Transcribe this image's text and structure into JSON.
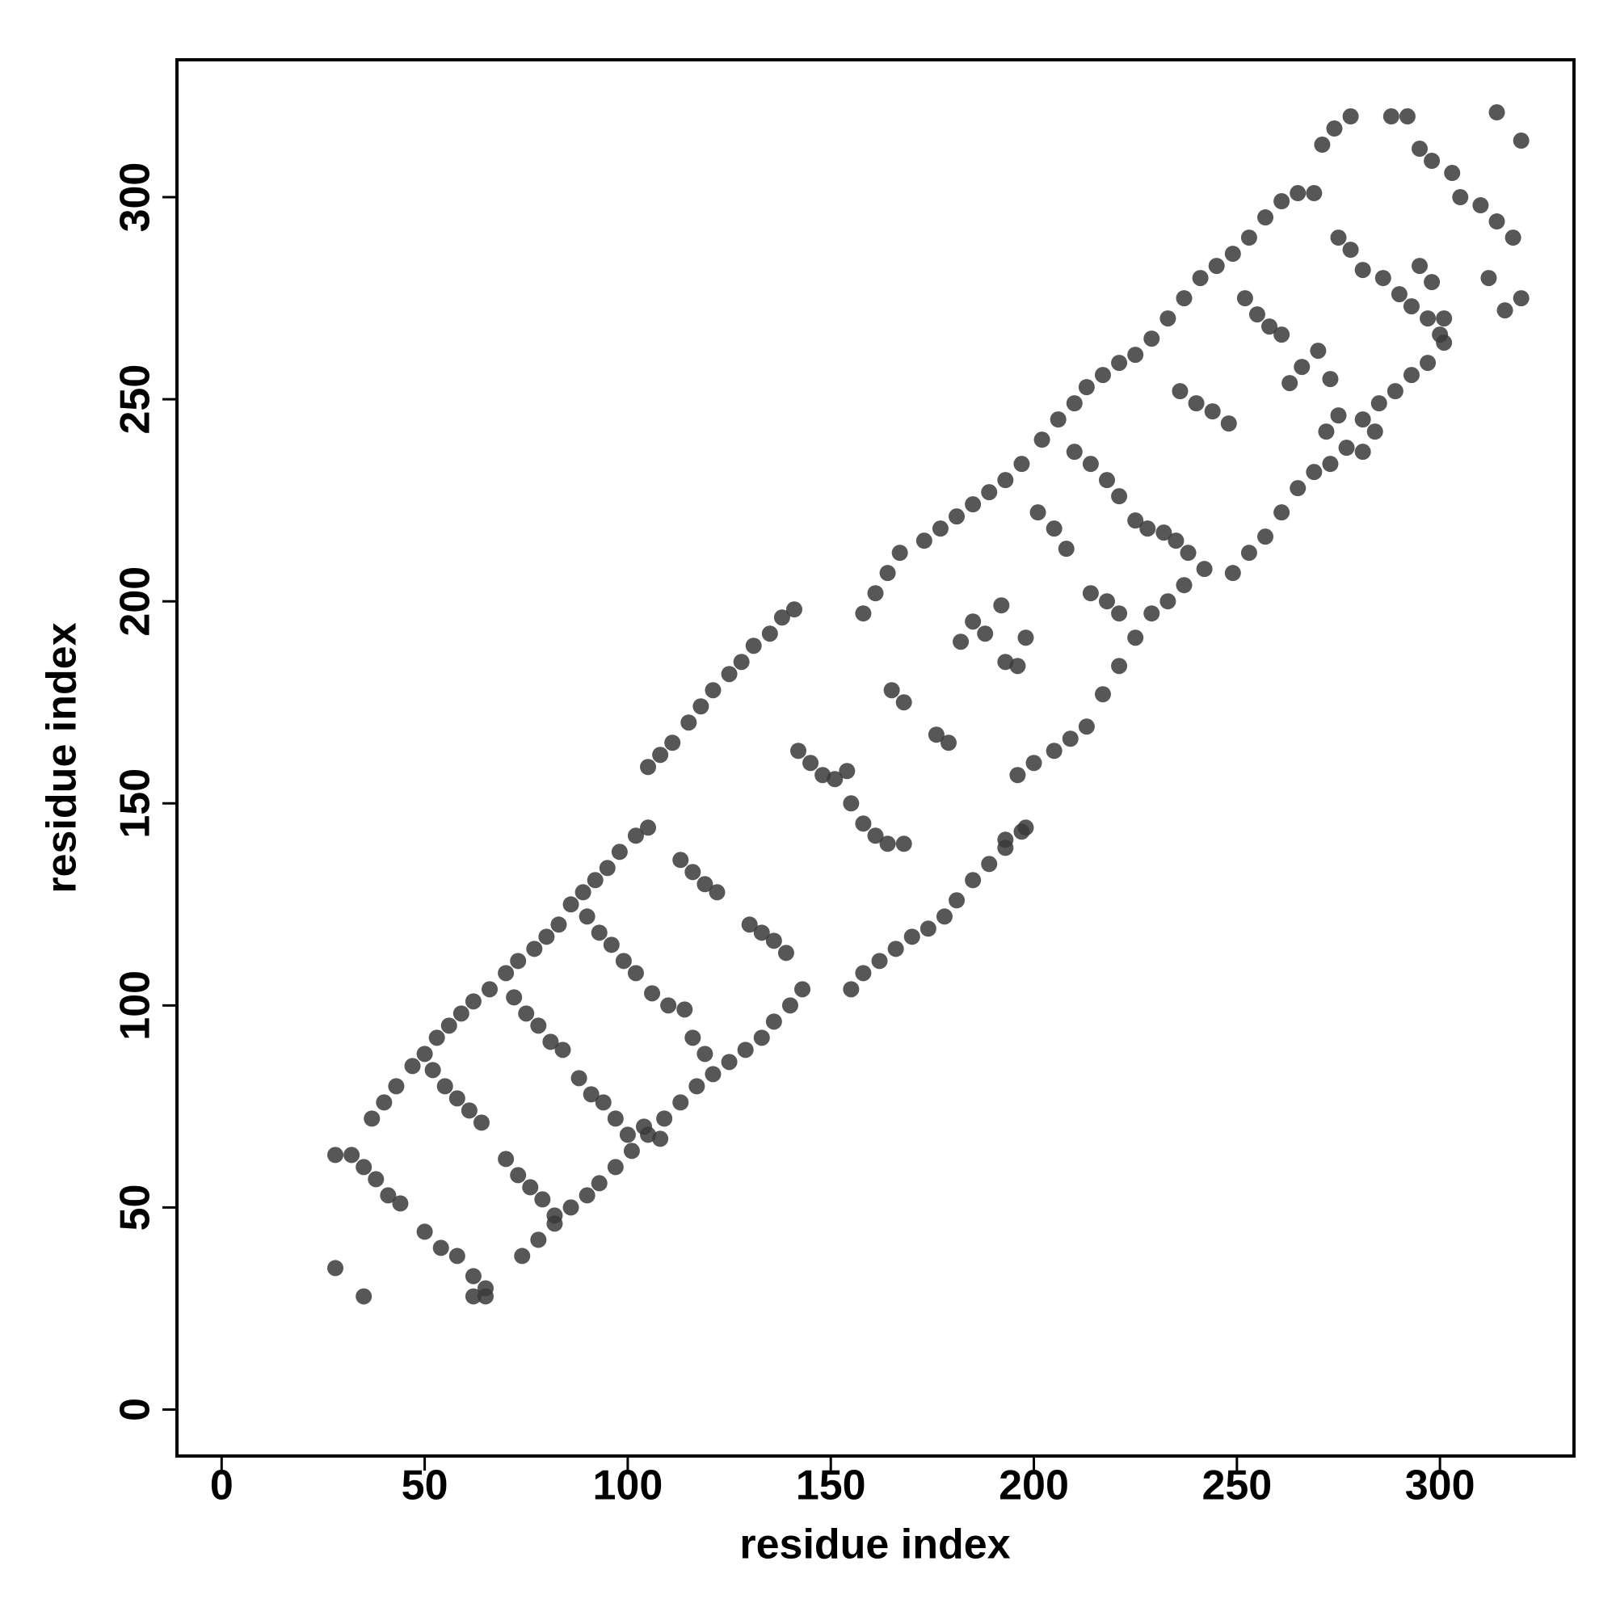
{
  "chart_data": {
    "type": "scatter",
    "xlabel": "residue index",
    "ylabel": "residue index",
    "xlim": [
      -11,
      333
    ],
    "ylim": [
      -11.5,
      334
    ],
    "xticks": [
      0,
      50,
      100,
      150,
      200,
      250,
      300
    ],
    "yticks": [
      0,
      50,
      100,
      150,
      200,
      250,
      300
    ],
    "color": "#3a3a3a",
    "x": [
      37,
      40,
      43,
      47,
      50,
      53,
      56,
      59,
      62,
      66,
      70,
      73,
      77,
      80,
      83,
      86,
      89,
      92,
      95,
      98,
      102,
      105,
      105,
      108,
      111,
      115,
      118,
      121,
      125,
      128,
      131,
      135,
      138,
      141,
      158,
      161,
      164,
      167,
      173,
      177,
      181,
      185,
      189,
      193,
      197,
      202,
      206,
      210,
      213,
      217,
      221,
      225,
      229,
      233,
      237,
      241,
      245,
      249,
      253,
      257,
      261,
      265,
      269,
      28,
      32,
      35,
      38,
      41,
      44,
      50,
      54,
      58,
      62,
      65,
      74,
      78,
      82,
      86,
      90,
      93,
      97,
      101,
      105,
      109,
      113,
      117,
      121,
      125,
      129,
      133,
      136,
      140,
      143,
      155,
      158,
      162,
      166,
      170,
      174,
      178,
      181,
      185,
      189,
      193,
      197,
      205,
      209,
      213,
      217,
      221,
      225,
      229,
      233,
      237,
      249,
      253,
      257,
      261,
      265,
      269,
      273,
      277,
      281,
      285,
      289,
      293,
      297,
      301,
      301,
      52,
      55,
      58,
      61,
      64,
      72,
      75,
      78,
      81,
      84,
      90,
      93,
      96,
      99,
      102,
      106,
      110,
      114,
      113,
      116,
      119,
      122,
      130,
      133,
      136,
      139,
      70,
      73,
      76,
      79,
      82,
      88,
      91,
      94,
      97,
      100,
      104,
      108,
      116,
      119,
      142,
      145,
      148,
      151,
      154,
      155,
      158,
      161,
      164,
      168,
      165,
      168,
      176,
      179,
      182,
      185,
      188,
      193,
      196,
      192,
      198,
      210,
      214,
      218,
      221,
      214,
      218,
      221,
      225,
      228,
      232,
      235,
      238,
      242,
      236,
      240,
      244,
      248,
      200,
      196,
      193,
      198,
      208,
      205,
      201,
      252,
      255,
      258,
      261,
      263,
      266,
      270,
      273,
      275,
      278,
      281,
      286,
      290,
      293,
      297,
      300,
      271,
      274,
      278,
      288,
      292,
      295,
      298,
      303,
      305,
      310,
      314,
      318,
      320,
      316,
      312,
      314,
      320,
      295,
      298,
      281,
      284,
      272,
      275,
      28,
      35,
      62,
      65
    ],
    "values": [
      72,
      76,
      80,
      85,
      88,
      92,
      95,
      98,
      101,
      104,
      108,
      111,
      114,
      117,
      120,
      125,
      128,
      131,
      134,
      138,
      142,
      144,
      159,
      162,
      165,
      170,
      174,
      178,
      182,
      185,
      189,
      192,
      196,
      198,
      197,
      202,
      207,
      212,
      215,
      218,
      221,
      224,
      227,
      230,
      234,
      240,
      245,
      249,
      253,
      256,
      259,
      261,
      265,
      270,
      275,
      280,
      283,
      286,
      290,
      295,
      299,
      301,
      301,
      63,
      63,
      60,
      57,
      53,
      51,
      44,
      40,
      38,
      33,
      30,
      38,
      42,
      46,
      50,
      53,
      56,
      60,
      64,
      68,
      72,
      76,
      80,
      83,
      86,
      89,
      92,
      96,
      100,
      104,
      104,
      108,
      111,
      114,
      117,
      119,
      122,
      126,
      131,
      135,
      139,
      143,
      163,
      166,
      169,
      177,
      184,
      191,
      197,
      200,
      204,
      207,
      212,
      216,
      222,
      228,
      232,
      234,
      238,
      245,
      249,
      252,
      256,
      259,
      264,
      270,
      84,
      80,
      77,
      74,
      71,
      102,
      98,
      95,
      91,
      89,
      122,
      118,
      115,
      111,
      108,
      103,
      100,
      99,
      136,
      133,
      130,
      128,
      120,
      118,
      116,
      113,
      62,
      58,
      55,
      52,
      48,
      82,
      78,
      76,
      72,
      68,
      70,
      67,
      92,
      88,
      163,
      160,
      157,
      156,
      158,
      150,
      145,
      142,
      140,
      140,
      178,
      175,
      167,
      165,
      190,
      195,
      192,
      185,
      184,
      199,
      191,
      237,
      234,
      230,
      226,
      202,
      200,
      197,
      220,
      218,
      217,
      215,
      212,
      208,
      252,
      249,
      247,
      244,
      160,
      157,
      141,
      144,
      213,
      218,
      222,
      275,
      271,
      268,
      266,
      254,
      258,
      262,
      255,
      290,
      287,
      282,
      280,
      276,
      273,
      270,
      266,
      313,
      317,
      320,
      320,
      320,
      312,
      309,
      306,
      300,
      298,
      294,
      290,
      275,
      272,
      280,
      321,
      314,
      283,
      279,
      237,
      242,
      242,
      246,
      35,
      28,
      28,
      28
    ]
  }
}
